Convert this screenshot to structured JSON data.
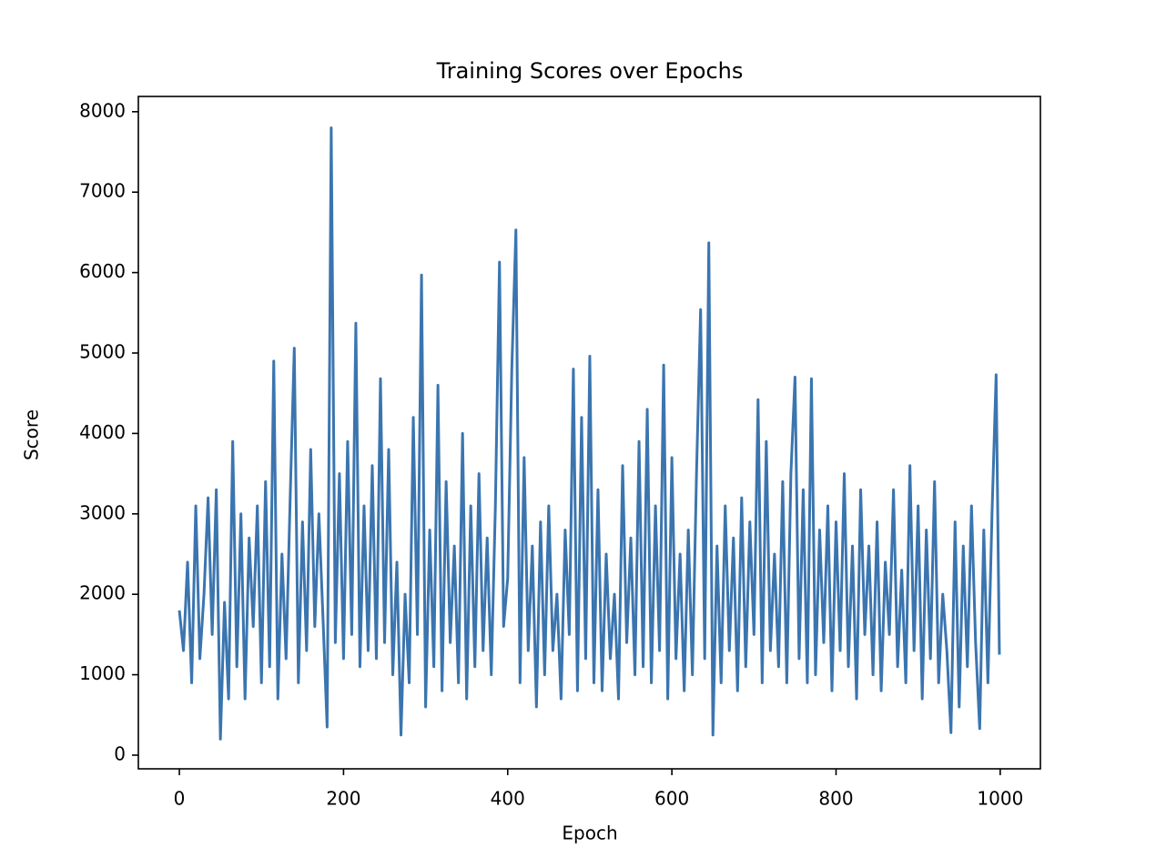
{
  "chart_data": {
    "type": "line",
    "title": "Training Scores over Epochs",
    "xlabel": "Epoch",
    "ylabel": "Score",
    "color": "#3b75af",
    "grid": false,
    "xlim": [
      -49.95,
      1048.95
    ],
    "xticks": [
      0,
      200,
      400,
      600,
      800,
      1000
    ],
    "ylim": [
      -170,
      8190
    ],
    "yticks": [
      0,
      1000,
      2000,
      3000,
      4000,
      5000,
      6000,
      7000,
      8000
    ],
    "x": [
      0,
      5,
      10,
      15,
      20,
      25,
      30,
      35,
      40,
      45,
      50,
      55,
      60,
      65,
      70,
      75,
      80,
      85,
      90,
      95,
      100,
      105,
      110,
      115,
      120,
      125,
      130,
      135,
      140,
      145,
      150,
      155,
      160,
      165,
      170,
      175,
      180,
      185,
      190,
      195,
      200,
      205,
      210,
      215,
      220,
      225,
      230,
      235,
      240,
      245,
      250,
      255,
      260,
      265,
      270,
      275,
      280,
      285,
      290,
      295,
      300,
      305,
      310,
      315,
      320,
      325,
      330,
      335,
      340,
      345,
      350,
      355,
      360,
      365,
      370,
      375,
      380,
      385,
      390,
      395,
      400,
      405,
      410,
      415,
      420,
      425,
      430,
      435,
      440,
      445,
      450,
      455,
      460,
      465,
      470,
      475,
      480,
      485,
      490,
      495,
      500,
      505,
      510,
      515,
      520,
      525,
      530,
      535,
      540,
      545,
      550,
      555,
      560,
      565,
      570,
      575,
      580,
      585,
      590,
      595,
      600,
      605,
      610,
      615,
      620,
      625,
      630,
      635,
      640,
      645,
      650,
      655,
      660,
      665,
      670,
      675,
      680,
      685,
      690,
      695,
      700,
      705,
      710,
      715,
      720,
      725,
      730,
      735,
      740,
      745,
      750,
      755,
      760,
      765,
      770,
      775,
      780,
      785,
      790,
      795,
      800,
      805,
      810,
      815,
      820,
      825,
      830,
      835,
      840,
      845,
      850,
      855,
      860,
      865,
      870,
      875,
      880,
      885,
      890,
      895,
      900,
      905,
      910,
      915,
      920,
      925,
      930,
      935,
      940,
      945,
      950,
      955,
      960,
      965,
      970,
      975,
      980,
      985,
      990,
      995,
      999
    ],
    "values": [
      1800,
      1300,
      2400,
      900,
      3100,
      1200,
      2000,
      3200,
      1500,
      3300,
      200,
      1900,
      700,
      3900,
      1100,
      3000,
      700,
      2700,
      1600,
      3100,
      900,
      3400,
      1100,
      4900,
      700,
      2500,
      1200,
      3200,
      5060,
      900,
      2900,
      1300,
      3800,
      1600,
      3000,
      1700,
      350,
      7800,
      1400,
      3500,
      1200,
      3900,
      1500,
      5370,
      1100,
      3100,
      1300,
      3600,
      1200,
      4680,
      1400,
      3800,
      1000,
      2400,
      250,
      2000,
      900,
      4200,
      1500,
      5970,
      600,
      2800,
      1100,
      4600,
      800,
      3400,
      1400,
      2600,
      900,
      4000,
      700,
      3100,
      1100,
      3500,
      1300,
      2700,
      1000,
      3100,
      6130,
      1600,
      2200,
      4800,
      6530,
      900,
      3700,
      1300,
      2600,
      600,
      2900,
      1000,
      3100,
      1300,
      2000,
      700,
      2800,
      1500,
      4800,
      800,
      4200,
      1200,
      4960,
      900,
      3300,
      800,
      2500,
      1200,
      2000,
      700,
      3600,
      1400,
      2700,
      1000,
      3900,
      1100,
      4300,
      900,
      3100,
      1300,
      4850,
      700,
      3700,
      1200,
      2500,
      800,
      2800,
      1000,
      3500,
      5540,
      1200,
      6370,
      250,
      2600,
      900,
      3100,
      1300,
      2700,
      800,
      3200,
      1100,
      2900,
      1500,
      4420,
      900,
      3900,
      1300,
      2500,
      1100,
      3400,
      900,
      3500,
      4700,
      1200,
      3300,
      900,
      4680,
      1000,
      2800,
      1400,
      3100,
      800,
      2900,
      1300,
      3500,
      1100,
      2600,
      700,
      3300,
      1500,
      2600,
      1000,
      2900,
      800,
      2400,
      1500,
      3300,
      1100,
      2300,
      900,
      3600,
      1300,
      3100,
      700,
      2800,
      1200,
      3400,
      900,
      2000,
      1300,
      280,
      2900,
      600,
      2600,
      1100,
      3100,
      1400,
      330,
      2800,
      900,
      3000,
      4730,
      1250
    ]
  }
}
